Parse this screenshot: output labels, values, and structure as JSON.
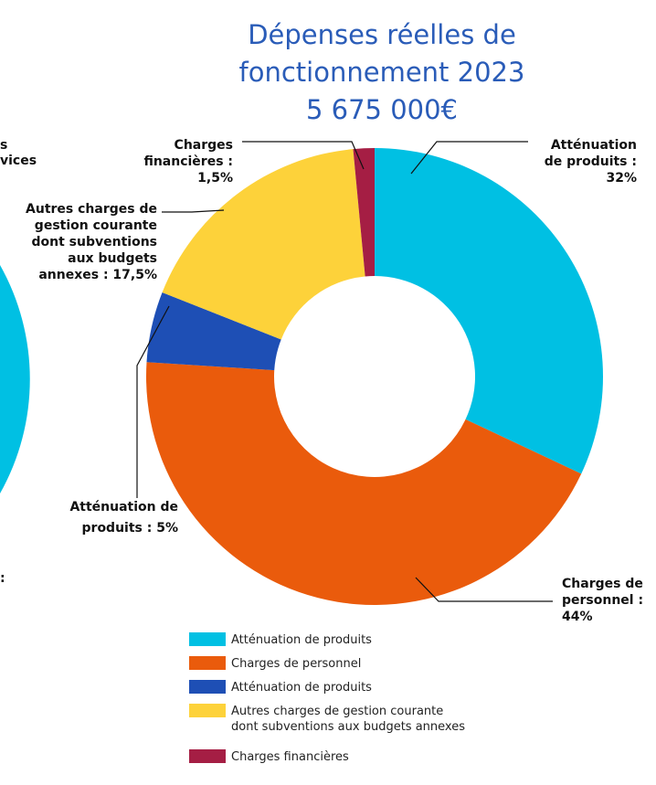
{
  "chart_data": {
    "type": "donut",
    "title": "Dépenses réelles de\nfonctionnement 2023\n5 675 000€",
    "categories": [
      "Atténuation de produits",
      "Charges de personnel",
      "Atténuation de produits",
      "Autres charges de gestion courante\ndont subventions aux budgets annexes",
      "Charges financières"
    ],
    "values": [
      32,
      44,
      5,
      17.5,
      1.5
    ],
    "value_labels": [
      "Atténuation\nde produits :\n32%",
      "Charges de\npersonnel :\n44%",
      "Atténuation de\nproduits : 5%",
      "Autres charges de\ngestion courante\ndont subventions\naux budgets\nannexes : 17,5%",
      "Charges\nfinancières :\n1,5%"
    ],
    "colors": [
      "#00c0e3",
      "#ea5b0c",
      "#1e4fb5",
      "#fdd23a",
      "#a51e44"
    ],
    "annotations": [
      "s",
      "vices",
      ":"
    ]
  }
}
